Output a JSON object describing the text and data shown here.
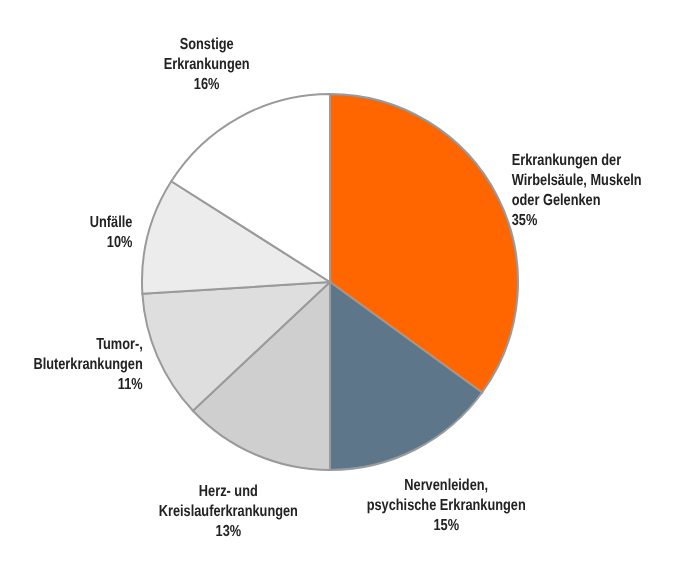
{
  "chart_data": {
    "type": "pie",
    "categories": [
      "Erkrankungen der\nWirbelsäule, Muskeln\noder Gelenken",
      "Nervenleiden,\npsychische Erkrankungen",
      "Herz- und\nKreislauferkrankungen",
      "Tumor-,\nBluterkrankungen",
      "Unfälle",
      "Sonstige\nErkrankungen"
    ],
    "values": [
      35,
      15,
      13,
      11,
      10,
      16
    ],
    "value_labels": [
      "35%",
      "15%",
      "13%",
      "11%",
      "10%",
      "16%"
    ],
    "colors": [
      "#ff6600",
      "#5e7689",
      "#cfcfcf",
      "#dedede",
      "#ececec",
      "#ffffff"
    ]
  }
}
